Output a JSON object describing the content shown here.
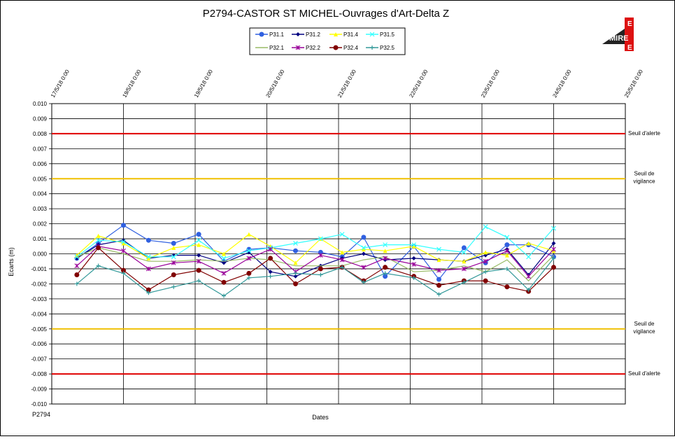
{
  "chart_data": {
    "type": "line",
    "title": "P2794-CASTOR ST MICHEL-Ouvrages d'Art-Delta Z",
    "xlabel": "Dates",
    "ylabel": "Ecarts (m)",
    "footer": "P2794",
    "logo_text": "MIRE",
    "ylim": [
      -0.01,
      0.01
    ],
    "yticks": [
      "0.010",
      "0.009",
      "0.008",
      "0.007",
      "0.006",
      "0.005",
      "0.004",
      "0.003",
      "0.002",
      "0.001",
      "0.000",
      "-0.001",
      "-0.002",
      "-0.003",
      "-0.004",
      "-0.005",
      "-0.006",
      "-0.007",
      "-0.008",
      "-0.009",
      "-0.010"
    ],
    "xticks": [
      "17/5/18 0:00",
      "19/5/18 0:00",
      "19/5/18 0:00",
      "20/5/18 0:00",
      "21/5/18 0:00",
      "22/5/18 0:00",
      "23/5/18 0:00",
      "24/5/18 0:00",
      "25/5/18 0:00"
    ],
    "grid": true,
    "legend_position": "top-center",
    "thresholds": [
      {
        "value": 0.008,
        "label": "Seuil d'alerte",
        "color": "#e00000"
      },
      {
        "value": 0.005,
        "label": "Seuil de vigilance",
        "color": "#f0c000"
      },
      {
        "value": -0.005,
        "label": "Seuil de vigilance",
        "color": "#f0c000"
      },
      {
        "value": -0.008,
        "label": "Seuil d'alerte",
        "color": "#e00000"
      }
    ],
    "x": [
      0.35,
      0.65,
      1.0,
      1.35,
      1.7,
      2.05,
      2.4,
      2.75,
      3.05,
      3.4,
      3.75,
      4.05,
      4.35,
      4.65,
      5.05,
      5.4,
      5.75,
      6.05,
      6.35,
      6.65,
      7.0
    ],
    "series": [
      {
        "name": "P31.1",
        "color": "#3060e0",
        "marker": "circle",
        "values": [
          -0.0003,
          0.0007,
          0.0019,
          0.0009,
          0.0007,
          0.0013,
          -0.0005,
          0.0003,
          0.0004,
          0.0002,
          0.0001,
          -0.0002,
          0.0011,
          -0.0015,
          0.0005,
          -0.0017,
          0.0004,
          -0.0006,
          0.0006,
          0.0006,
          -0.0002
        ]
      },
      {
        "name": "P31.2",
        "color": "#000080",
        "marker": "diamond",
        "values": [
          -0.0003,
          0.0006,
          0.0009,
          -0.0003,
          -0.0001,
          -0.0001,
          -0.0006,
          0.0001,
          -0.0012,
          -0.0015,
          -0.0008,
          -0.0003,
          0.0,
          -0.0004,
          -0.0003,
          -0.0004,
          -0.0005,
          -0.0001,
          0.0003,
          -0.0014,
          0.0007
        ]
      },
      {
        "name": "P31.4",
        "color": "#ffff00",
        "marker": "triangle",
        "values": [
          -0.0001,
          0.0012,
          0.0007,
          -0.0003,
          0.0004,
          0.0006,
          0.0,
          0.0013,
          0.0005,
          -0.0006,
          0.001,
          0.0001,
          0.0003,
          0.0002,
          0.0005,
          -0.0004,
          -0.0005,
          0.0001,
          -0.0001,
          0.0007,
          0.0002
        ]
      },
      {
        "name": "P31.5",
        "color": "#33ffff",
        "marker": "x",
        "values": [
          -0.0002,
          0.0009,
          0.0008,
          -0.0002,
          -0.0002,
          0.0009,
          -0.0003,
          0.0002,
          0.0004,
          0.0007,
          0.001,
          0.0013,
          0.0004,
          0.0006,
          0.0006,
          0.0003,
          0.0001,
          0.0018,
          0.0011,
          -0.0002,
          0.0017
        ]
      },
      {
        "name": "P32.1",
        "color": "#99bb66",
        "marker": "line",
        "values": [
          -0.0002,
          0.0004,
          0.0,
          -0.0005,
          -0.0005,
          -0.0004,
          -0.0005,
          -0.0003,
          -0.0004,
          -0.0008,
          -0.0008,
          -0.0008,
          -0.0004,
          -0.0002,
          -0.0012,
          -0.0011,
          -0.0008,
          -0.0012,
          -0.0004,
          -0.0018,
          -0.0001
        ]
      },
      {
        "name": "P32.2",
        "color": "#990099",
        "marker": "star",
        "values": [
          -0.0008,
          0.0005,
          0.0002,
          -0.001,
          -0.0006,
          -0.0005,
          -0.0013,
          -0.0003,
          0.0003,
          -0.0012,
          -0.0001,
          -0.0004,
          -0.0009,
          -0.0003,
          -0.0007,
          -0.0011,
          -0.001,
          -0.0005,
          0.0002,
          -0.0015,
          0.0003
        ]
      },
      {
        "name": "P32.4",
        "color": "#800000",
        "marker": "circle",
        "values": [
          -0.0014,
          0.0004,
          -0.0011,
          -0.0024,
          -0.0014,
          -0.0011,
          -0.0019,
          -0.0013,
          -0.0003,
          -0.002,
          -0.001,
          -0.0009,
          -0.0018,
          -0.0009,
          -0.0015,
          -0.0021,
          -0.0018,
          -0.0018,
          -0.0022,
          -0.0025,
          -0.0009
        ]
      },
      {
        "name": "P32.5",
        "color": "#339999",
        "marker": "plus",
        "values": [
          -0.002,
          -0.0008,
          -0.0013,
          -0.0026,
          -0.0022,
          -0.0018,
          -0.0028,
          -0.0016,
          -0.0015,
          -0.0013,
          -0.0014,
          -0.0009,
          -0.0019,
          -0.0013,
          -0.0016,
          -0.0027,
          -0.0019,
          -0.0012,
          -0.001,
          -0.0024,
          -0.0003
        ]
      }
    ]
  }
}
